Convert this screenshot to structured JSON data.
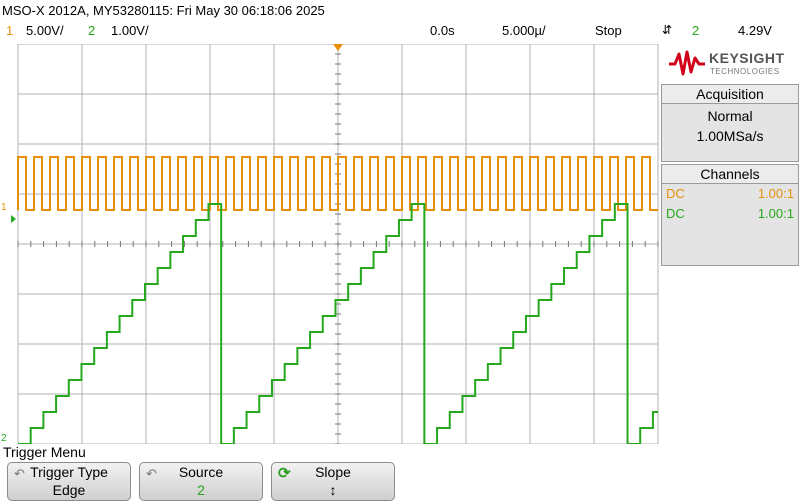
{
  "header": {
    "title": "MSO-X 2012A, MY53280115: Fri May 30 06:18:06 2025",
    "ch1_num": "1",
    "ch1_scale": "5.00V/",
    "ch2_num": "2",
    "ch2_scale": "1.00V/",
    "delay": "0.0s",
    "timebase": "5.000µ/",
    "run_state": "Stop",
    "trigger_source": "2",
    "trigger_level": "4.29V"
  },
  "brand": {
    "name": "KEYSIGHT",
    "sub": "TECHNOLOGIES",
    "color": "#d0021b"
  },
  "acquisition": {
    "title": "Acquisition",
    "mode": "Normal",
    "rate": "1.00MSa/s"
  },
  "channels": {
    "title": "Channels",
    "items": [
      {
        "coupling": "DC",
        "probe": "1.00:1",
        "color": "#e8900a"
      },
      {
        "coupling": "DC",
        "probe": "1.00:1",
        "color": "#25a81b"
      }
    ]
  },
  "markers": {
    "ch1": "1",
    "ch2": "2"
  },
  "menu": {
    "title": "Trigger Menu",
    "softkeys": [
      {
        "label": "Trigger Type",
        "value": "Edge"
      },
      {
        "label": "Source",
        "value": "2"
      },
      {
        "label": "Slope",
        "value": "↕"
      }
    ]
  },
  "waveforms": {
    "ch1": {
      "type": "square",
      "high_v": 1.5,
      "low_v": 0.1,
      "cycles": 40,
      "color": "#e8900a"
    },
    "ch2": {
      "type": "staircase",
      "periods": 3.15,
      "steps_per_period": 16,
      "min_v": -4.0,
      "max_v": 0.8,
      "color": "#25a81b"
    }
  }
}
